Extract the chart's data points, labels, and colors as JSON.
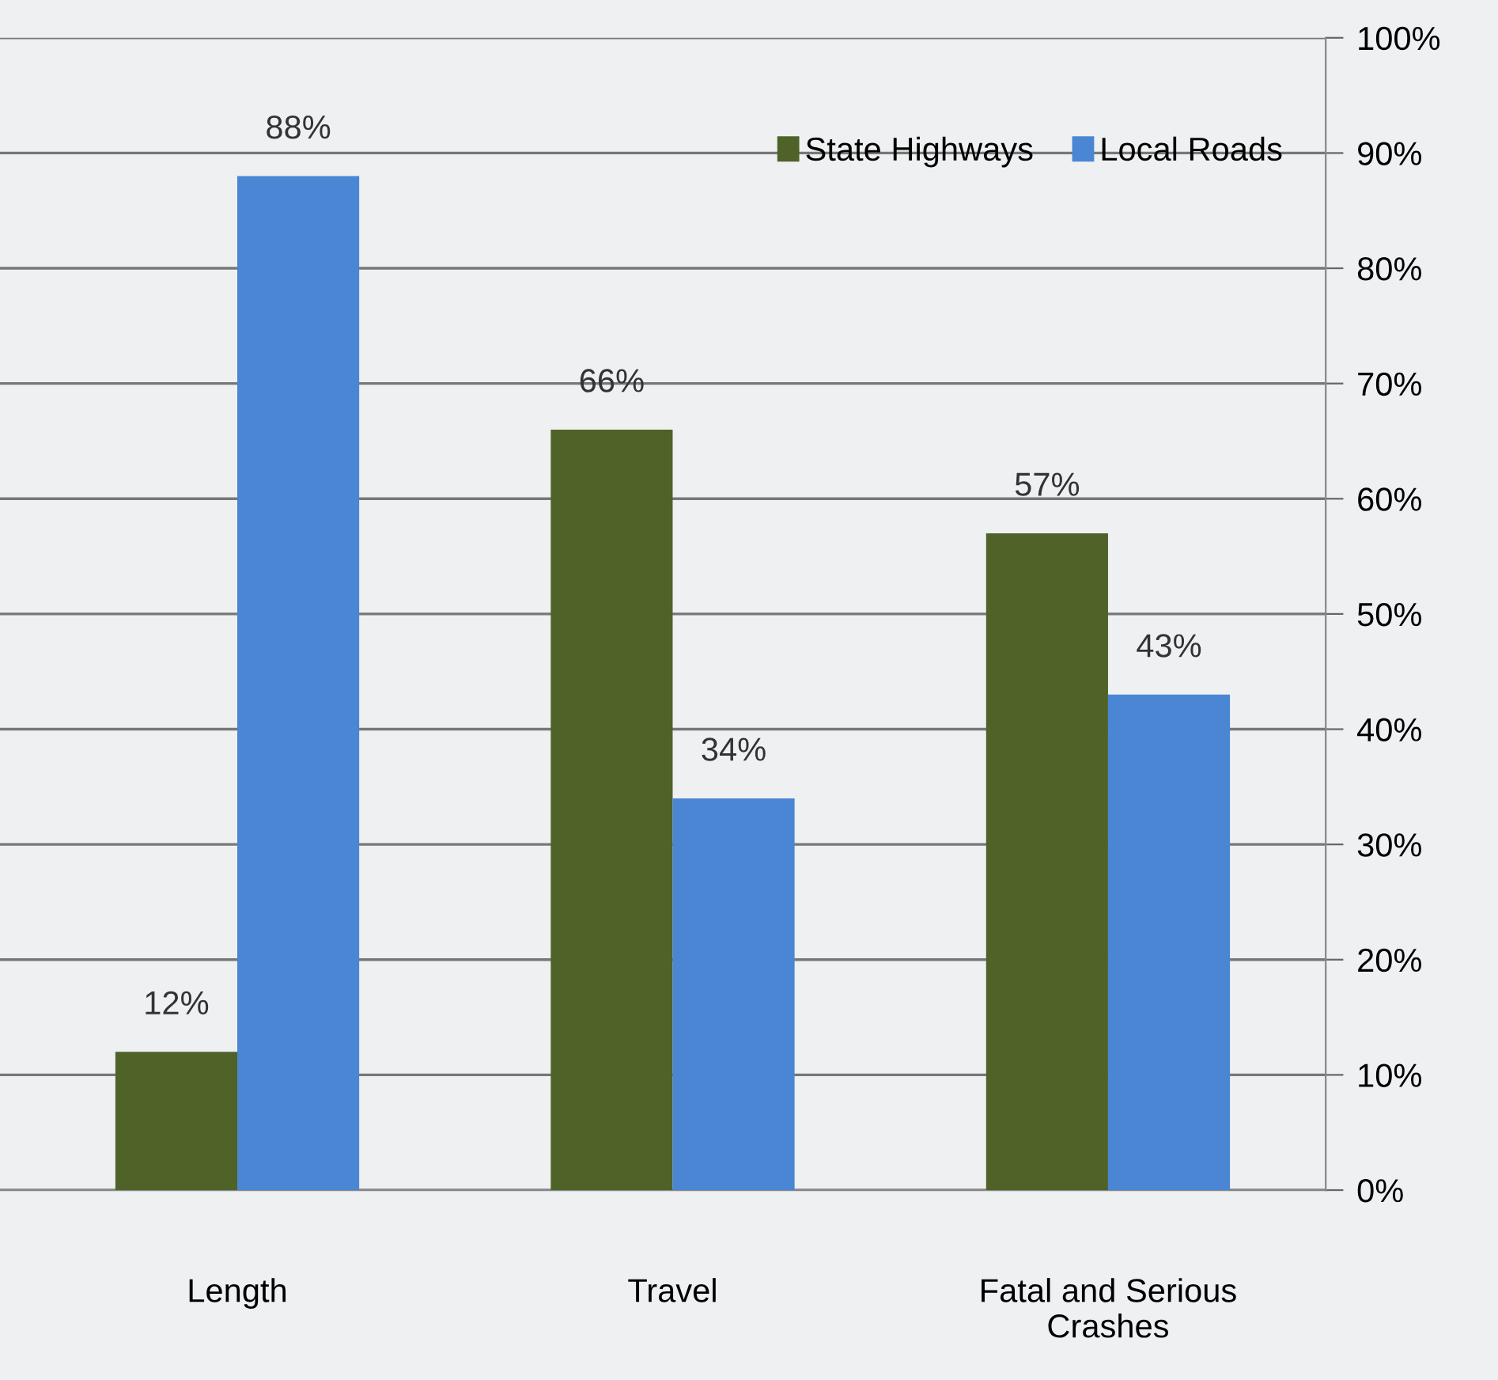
{
  "chart_data": {
    "type": "bar",
    "categories": [
      "Length",
      "Travel",
      "Fatal and Serious\nCrashes"
    ],
    "series": [
      {
        "name": "State Highways",
        "color": "#4f6228",
        "values": [
          12,
          66,
          57
        ],
        "value_labels": [
          "12%",
          "66%",
          "57%"
        ]
      },
      {
        "name": "Local Roads",
        "color": "#4a86d4",
        "values": [
          88,
          34,
          43
        ],
        "value_labels": [
          "88%",
          "34%",
          "43%"
        ]
      }
    ],
    "ylim": [
      0,
      100
    ],
    "yticks": [
      {
        "value": 0,
        "label": "0%"
      },
      {
        "value": 10,
        "label": "10%"
      },
      {
        "value": 20,
        "label": "20%"
      },
      {
        "value": 30,
        "label": "30%"
      },
      {
        "value": 40,
        "label": "40%"
      },
      {
        "value": 50,
        "label": "50%"
      },
      {
        "value": 60,
        "label": "60%"
      },
      {
        "value": 70,
        "label": "70%"
      },
      {
        "value": 80,
        "label": "80%"
      },
      {
        "value": 90,
        "label": "90%"
      },
      {
        "value": 100,
        "label": "100%"
      }
    ],
    "grid": "y",
    "legend": "top right"
  }
}
